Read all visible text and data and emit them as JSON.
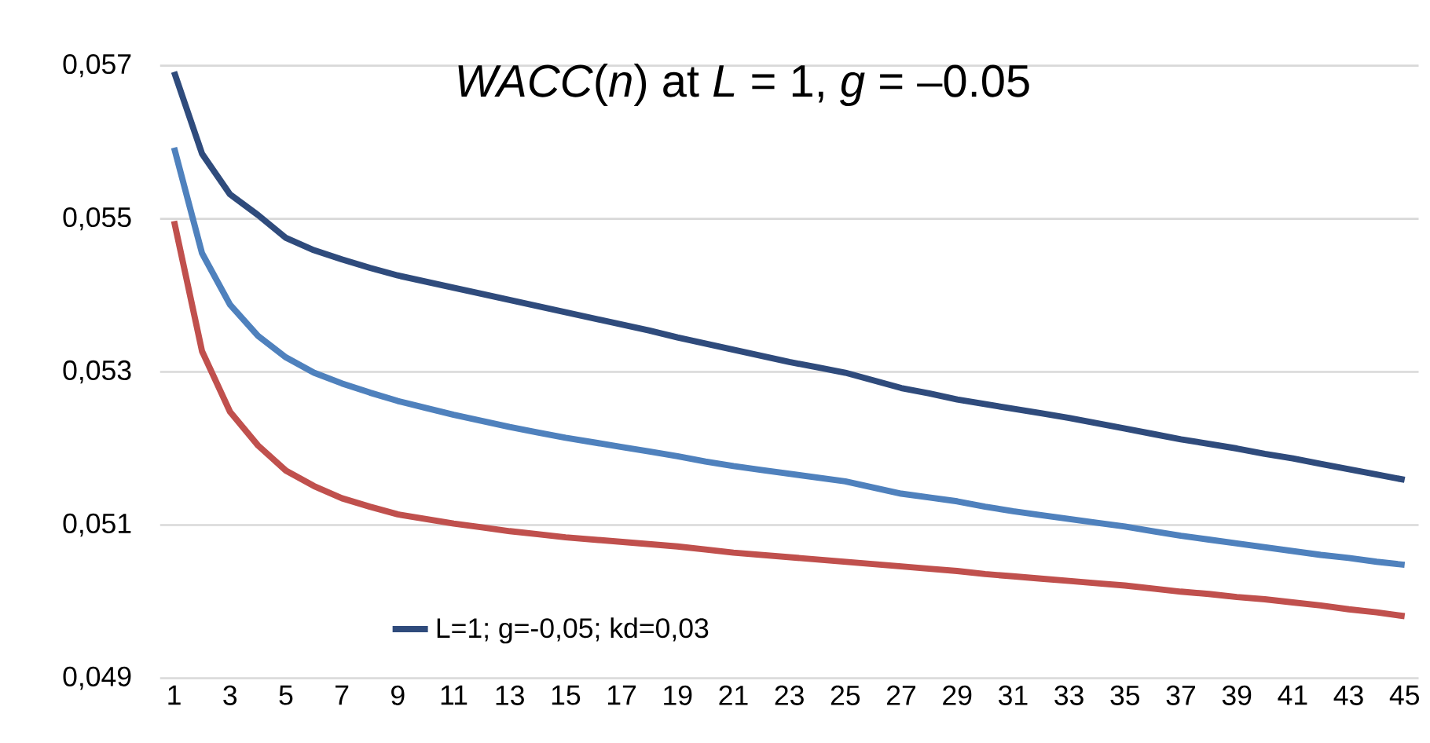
{
  "chart_data": {
    "type": "line",
    "title": "*WACC*(*n*) at *L* = 1, *g* = –0.05",
    "categories": [
      "1",
      null,
      "3",
      null,
      "5",
      null,
      "7",
      null,
      "9",
      null,
      "11",
      null,
      "13",
      null,
      "15",
      null,
      "17",
      null,
      "19",
      null,
      "21",
      null,
      "23",
      null,
      "25",
      null,
      "27",
      null,
      "29",
      null,
      "31",
      null,
      "33",
      null,
      "35",
      null,
      "37",
      null,
      "39",
      null,
      "41",
      null,
      "43",
      null,
      "45"
    ],
    "series": [
      {
        "name": "L=1; g=-0,05; kd=0,03",
        "color": "#2f4b7c",
        "values": [
          0.05692,
          0.05585,
          0.05532,
          0.05505,
          0.05475,
          0.05459,
          0.05447,
          0.05436,
          0.05426,
          0.05418,
          0.0541,
          0.05402,
          0.05394,
          0.05386,
          0.05378,
          0.0537,
          0.05362,
          0.05354,
          0.05345,
          0.05337,
          0.05329,
          0.05321,
          0.05313,
          0.05306,
          0.05299,
          0.05289,
          0.05279,
          0.05272,
          0.05264,
          0.05258,
          0.05252,
          0.05246,
          0.0524,
          0.05233,
          0.05226,
          0.05219,
          0.05212,
          0.05206,
          0.052,
          0.05193,
          0.05187,
          0.0518,
          0.05173,
          0.05166,
          0.05159
        ]
      },
      {
        "color": "#4f81bd",
        "values": [
          0.05593,
          0.05455,
          0.05388,
          0.05347,
          0.05319,
          0.05299,
          0.05285,
          0.05273,
          0.05262,
          0.05253,
          0.05244,
          0.05236,
          0.05228,
          0.05221,
          0.05214,
          0.05208,
          0.05202,
          0.05196,
          0.0519,
          0.05183,
          0.05177,
          0.05172,
          0.05167,
          0.05162,
          0.05157,
          0.05149,
          0.05141,
          0.05136,
          0.05131,
          0.05124,
          0.05118,
          0.05113,
          0.05108,
          0.05103,
          0.05098,
          0.05092,
          0.05086,
          0.05081,
          0.05076,
          0.05071,
          0.05066,
          0.05061,
          0.05057,
          0.05052,
          0.05048
        ]
      },
      {
        "color": "#c0504d",
        "values": [
          0.05497,
          0.05327,
          0.05248,
          0.05204,
          0.05171,
          0.05151,
          0.05135,
          0.05124,
          0.05114,
          0.05108,
          0.05102,
          0.05097,
          0.05092,
          0.05088,
          0.05084,
          0.05081,
          0.05078,
          0.05075,
          0.05072,
          0.05068,
          0.05064,
          0.05061,
          0.05058,
          0.05055,
          0.05052,
          0.05049,
          0.05046,
          0.05043,
          0.0504,
          0.05036,
          0.05033,
          0.0503,
          0.05027,
          0.05024,
          0.05021,
          0.05017,
          0.05013,
          0.0501,
          0.05006,
          0.05003,
          0.04999,
          0.04995,
          0.0499,
          0.04986,
          0.04981
        ]
      }
    ],
    "ylim": [
      0.049,
      0.057
    ],
    "yticks": [
      {
        "value": 0.049,
        "label": "0,049"
      },
      {
        "value": 0.051,
        "label": "0,051"
      },
      {
        "value": 0.053,
        "label": "0,053"
      },
      {
        "value": 0.055,
        "label": "0,055"
      },
      {
        "value": 0.057,
        "label": "0,057"
      }
    ],
    "grid": "y",
    "legend": "bottom left",
    "marker": "none",
    "line_style": "solid"
  }
}
